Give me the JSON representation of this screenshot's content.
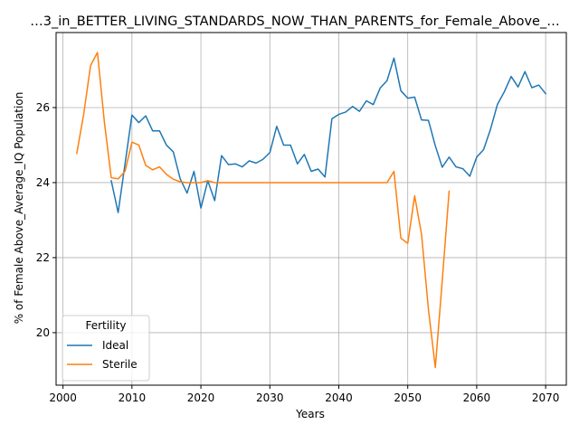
{
  "chart_data": {
    "type": "line",
    "title": "…3_in_BETTER_LIVING_STANDARDS_NOW_THAN_PARENTS_for_Female_Above_…",
    "xlabel": "Years",
    "ylabel": "% of Female Above_Average_IQ Population",
    "xlim": [
      1999,
      2073
    ],
    "ylim": [
      18.6,
      28.0
    ],
    "xticks": [
      2000,
      2010,
      2020,
      2030,
      2040,
      2050,
      2060,
      2070
    ],
    "yticks": [
      20,
      22,
      24,
      26
    ],
    "grid": true,
    "legend": {
      "title": "Fertility",
      "position": "lower-left"
    },
    "series": [
      {
        "name": "Ideal",
        "color": "#1f77b4",
        "x": [
          2007,
          2008,
          2009,
          2010,
          2011,
          2012,
          2013,
          2014,
          2015,
          2016,
          2017,
          2018,
          2019,
          2020,
          2021,
          2022,
          2023,
          2024,
          2025,
          2026,
          2027,
          2028,
          2029,
          2030,
          2031,
          2032,
          2033,
          2034,
          2035,
          2036,
          2037,
          2038,
          2039,
          2040,
          2041,
          2042,
          2043,
          2044,
          2045,
          2046,
          2047,
          2048,
          2049,
          2050,
          2051,
          2052,
          2053,
          2054,
          2055,
          2056,
          2057,
          2058,
          2059,
          2060,
          2061,
          2062,
          2063,
          2064,
          2065,
          2066,
          2067,
          2068,
          2069,
          2070
        ],
        "y": [
          24.05,
          23.2,
          24.5,
          25.8,
          25.6,
          25.78,
          25.38,
          25.38,
          25.0,
          24.82,
          24.1,
          23.72,
          24.3,
          23.32,
          24.05,
          23.52,
          24.72,
          24.48,
          24.5,
          24.42,
          24.58,
          24.52,
          24.62,
          24.8,
          25.5,
          25.0,
          25.0,
          24.5,
          24.75,
          24.3,
          24.36,
          24.15,
          25.7,
          25.82,
          25.88,
          26.03,
          25.9,
          26.18,
          26.08,
          26.52,
          26.72,
          27.32,
          26.45,
          26.25,
          26.28,
          25.67,
          25.66,
          24.98,
          24.41,
          24.68,
          24.42,
          24.37,
          24.17,
          24.68,
          24.88,
          25.42,
          26.08,
          26.42,
          26.83,
          26.55,
          26.96,
          26.53,
          26.6,
          26.37
        ]
      },
      {
        "name": "Sterile",
        "color": "#ff7f0e",
        "x": [
          2002,
          2003,
          2004,
          2005,
          2006,
          2007,
          2008,
          2009,
          2010,
          2011,
          2012,
          2013,
          2014,
          2015,
          2016,
          2017,
          2018,
          2019,
          2020,
          2021,
          2022,
          2023,
          2024,
          2025,
          2026,
          2027,
          2028,
          2029,
          2030,
          2031,
          2032,
          2033,
          2034,
          2035,
          2036,
          2037,
          2038,
          2039,
          2040,
          2041,
          2042,
          2043,
          2044,
          2045,
          2046,
          2047,
          2048,
          2049,
          2050,
          2051,
          2052,
          2053,
          2054,
          2055,
          2056
        ],
        "y": [
          24.78,
          25.82,
          27.12,
          27.47,
          25.62,
          24.13,
          24.1,
          24.3,
          25.08,
          25.0,
          24.46,
          24.34,
          24.42,
          24.22,
          24.09,
          24.02,
          24.0,
          24.0,
          24.0,
          24.05,
          24.0,
          24.0,
          24.0,
          24.0,
          24.0,
          24.0,
          24.0,
          24.0,
          24.0,
          24.0,
          24.0,
          24.0,
          24.0,
          24.0,
          24.0,
          24.0,
          24.0,
          24.0,
          24.0,
          24.0,
          24.0,
          24.0,
          24.0,
          24.0,
          24.0,
          24.0,
          24.3,
          22.52,
          22.38,
          23.65,
          22.62,
          20.62,
          19.07,
          21.38,
          23.77
        ]
      }
    ]
  }
}
